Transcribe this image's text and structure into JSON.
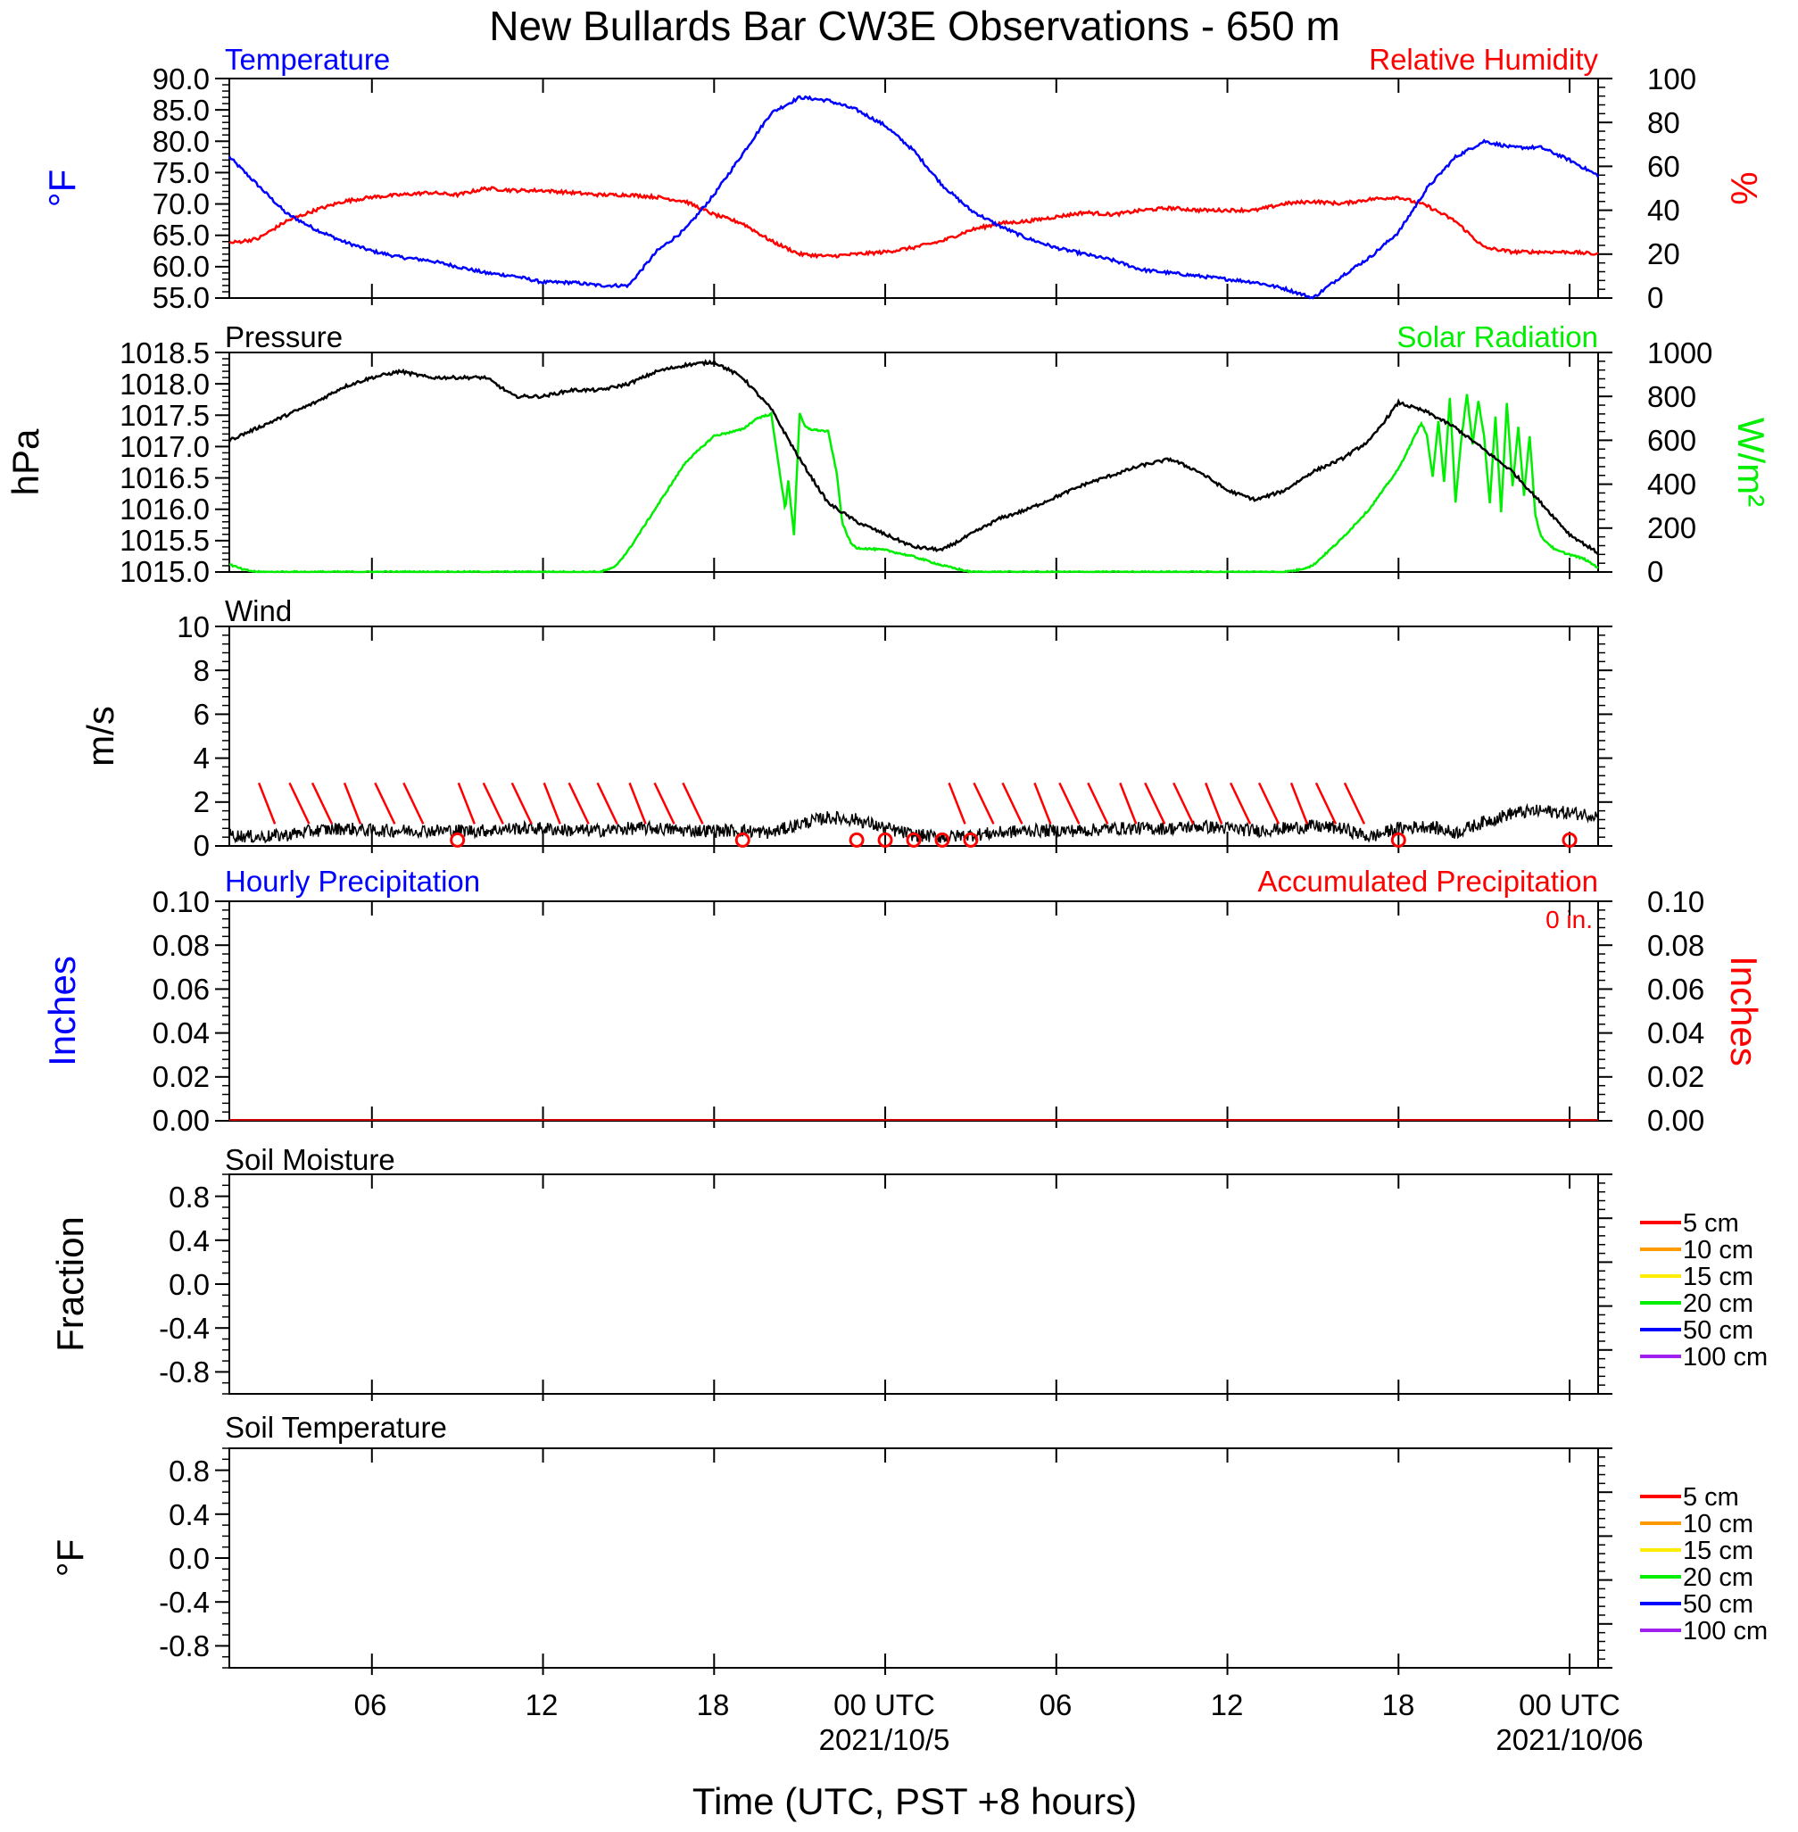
{
  "title": "New Bullards Bar CW3E Observations - 650 m",
  "x_axis": {
    "label": "Time (UTC, PST +8 hours)",
    "tick_labels": [
      "06",
      "12",
      "18",
      "00 UTC",
      "06",
      "12",
      "18",
      "00 UTC"
    ],
    "date_labels": [
      "2021/10/5",
      "2021/10/06"
    ]
  },
  "colors": {
    "temperature": "#0000ff",
    "humidity": "#ff0000",
    "pressure": "#000000",
    "solar": "#00ee00",
    "wind_speed": "#000000",
    "wind_barb": "#ff0000",
    "precip_hourly": "#0000ff",
    "precip_accum": "#ff0000",
    "soil_5": "#ff0000",
    "soil_10": "#ff9900",
    "soil_15": "#ffee00",
    "soil_20": "#00ee00",
    "soil_50": "#0000ff",
    "soil_100": "#a020f0"
  },
  "panels": {
    "temp_rh": {
      "title_left": "Temperature",
      "title_right": "Relative Humidity",
      "ylabel_left": "°F",
      "ylabel_right": "%",
      "left_ticks": [
        "90.0",
        "85.0",
        "80.0",
        "75.0",
        "70.0",
        "65.0",
        "60.0",
        "55.0"
      ],
      "right_ticks": [
        "100",
        "80",
        "60",
        "40",
        "20",
        "0"
      ]
    },
    "pressure_solar": {
      "title_left": "Pressure",
      "title_right": "Solar Radiation",
      "ylabel_left": "hPa",
      "ylabel_right": "W/m²",
      "left_ticks": [
        "1018.5",
        "1018.0",
        "1017.5",
        "1017.0",
        "1016.5",
        "1016.0",
        "1015.5",
        "1015.0"
      ],
      "right_ticks": [
        "1000",
        "800",
        "600",
        "400",
        "200",
        "0"
      ]
    },
    "wind": {
      "title_left": "Wind",
      "ylabel_left": "m/s",
      "left_ticks": [
        "10",
        "8",
        "6",
        "4",
        "2",
        "0"
      ]
    },
    "precip": {
      "title_left": "Hourly Precipitation",
      "title_right": "Accumulated Precipitation",
      "total_label": "0 in.",
      "ylabel_left": "Inches",
      "ylabel_right": "Inches",
      "left_ticks": [
        "0.10",
        "0.08",
        "0.06",
        "0.04",
        "0.02",
        "0.00"
      ],
      "right_ticks": [
        "0.10",
        "0.08",
        "0.06",
        "0.04",
        "0.02",
        "0.00"
      ]
    },
    "soil_moisture": {
      "title_left": "Soil Moisture",
      "ylabel_left": "Fraction",
      "left_ticks": [
        "0.8",
        "0.4",
        "0.0",
        "-0.4",
        "-0.8"
      ],
      "legend": [
        "5 cm",
        "10 cm",
        "15 cm",
        "20 cm",
        "50 cm",
        "100 cm"
      ]
    },
    "soil_temp": {
      "title_left": "Soil Temperature",
      "ylabel_left": "°F",
      "left_ticks": [
        "0.8",
        "0.4",
        "0.0",
        "-0.4",
        "-0.8"
      ],
      "legend": [
        "5 cm",
        "10 cm",
        "15 cm",
        "20 cm",
        "50 cm",
        "100 cm"
      ]
    }
  },
  "chart_data": [
    {
      "type": "line",
      "panel": "temp_rh",
      "x_unit": "hours since 2021-10-04 01:00 UTC",
      "xlim": [
        0,
        48
      ],
      "series": [
        {
          "name": "Temperature",
          "axis": "left",
          "ylim": [
            55,
            90
          ],
          "x": [
            0,
            1,
            2,
            3,
            4,
            5,
            6,
            7,
            8,
            9,
            10,
            11,
            12,
            13,
            14,
            15,
            16,
            17,
            18,
            19,
            20,
            21,
            22,
            23,
            24,
            25,
            26,
            27,
            28,
            29,
            30,
            31,
            32,
            33,
            34,
            35,
            36,
            37,
            38,
            39,
            40,
            41,
            42,
            43,
            44,
            45,
            46,
            47,
            48
          ],
          "values": [
            77.5,
            73.0,
            68.5,
            66.0,
            64.0,
            62.5,
            61.5,
            61.0,
            60.0,
            59.0,
            58.5,
            57.5,
            57.5,
            57.0,
            57.0,
            62.5,
            66.0,
            71.5,
            78.0,
            84.5,
            87.0,
            86.5,
            85.0,
            82.5,
            78.5,
            73.0,
            69.0,
            66.5,
            64.5,
            63.0,
            62.0,
            61.0,
            59.5,
            59.0,
            58.5,
            58.0,
            57.5,
            56.5,
            55.0,
            58.5,
            61.5,
            65.5,
            72.5,
            77.5,
            80.0,
            79.0,
            79.0,
            77.0,
            74.5
          ]
        },
        {
          "name": "Relative Humidity",
          "axis": "right",
          "ylim": [
            0,
            100
          ],
          "x": [
            0,
            1,
            2,
            3,
            4,
            5,
            6,
            7,
            8,
            9,
            10,
            11,
            12,
            13,
            14,
            15,
            16,
            17,
            18,
            19,
            20,
            21,
            22,
            23,
            24,
            25,
            26,
            27,
            28,
            29,
            30,
            31,
            32,
            33,
            34,
            35,
            36,
            37,
            38,
            39,
            40,
            41,
            42,
            43,
            44,
            45,
            46,
            47,
            48
          ],
          "values": [
            25,
            27,
            35,
            40,
            44,
            46,
            47,
            48,
            47,
            50,
            49,
            49,
            48,
            47,
            47,
            46,
            44,
            38,
            34,
            26,
            20,
            19,
            20,
            21,
            23,
            26,
            31,
            34,
            35,
            37,
            39,
            38,
            40,
            41,
            40,
            40,
            40,
            43,
            44,
            43,
            45,
            46,
            42,
            35,
            23,
            21,
            21,
            21,
            20
          ]
        }
      ]
    },
    {
      "type": "line",
      "panel": "pressure_solar",
      "x_unit": "hours since 2021-10-04 01:00 UTC",
      "xlim": [
        0,
        48
      ],
      "series": [
        {
          "name": "Pressure",
          "axis": "left",
          "ylim": [
            1015.0,
            1018.5
          ],
          "x": [
            0,
            1,
            2,
            3,
            4,
            5,
            6,
            7,
            8,
            9,
            10,
            11,
            12,
            13,
            14,
            15,
            16,
            17,
            18,
            19,
            20,
            21,
            22,
            23,
            24,
            25,
            26,
            27,
            28,
            29,
            30,
            31,
            32,
            33,
            34,
            35,
            36,
            37,
            38,
            39,
            40,
            41,
            42,
            43,
            44,
            45,
            46,
            47,
            48
          ],
          "values": [
            1017.1,
            1017.3,
            1017.5,
            1017.7,
            1017.95,
            1018.1,
            1018.2,
            1018.1,
            1018.1,
            1018.1,
            1017.8,
            1017.8,
            1017.9,
            1017.9,
            1018.0,
            1018.2,
            1018.3,
            1018.35,
            1018.1,
            1017.6,
            1016.8,
            1016.1,
            1015.8,
            1015.6,
            1015.4,
            1015.35,
            1015.6,
            1015.85,
            1016.0,
            1016.2,
            1016.4,
            1016.55,
            1016.7,
            1016.8,
            1016.6,
            1016.3,
            1016.15,
            1016.3,
            1016.6,
            1016.8,
            1017.1,
            1017.7,
            1017.55,
            1017.3,
            1016.95,
            1016.6,
            1016.1,
            1015.6,
            1015.3
          ]
        },
        {
          "name": "Solar Radiation",
          "axis": "right",
          "ylim": [
            0,
            1000
          ],
          "x": [
            0,
            0.5,
            1,
            2,
            3,
            4,
            5,
            6,
            7,
            8,
            9,
            10,
            11,
            12,
            13,
            13.5,
            14,
            15,
            16,
            17,
            18,
            18.5,
            19.0,
            19.5,
            19.6,
            19.8,
            20.0,
            20.2,
            20.4,
            21.0,
            21.3,
            21.5,
            21.8,
            22.0,
            23.0,
            24.0,
            25.0,
            26.0,
            30.0,
            35.0,
            37.0,
            37.5,
            38.0,
            39.0,
            40.0,
            41.0,
            41.5,
            41.8,
            42.0,
            42.2,
            42.4,
            42.6,
            42.8,
            43.0,
            43.2,
            43.4,
            43.6,
            43.8,
            44.0,
            44.2,
            44.4,
            44.6,
            44.8,
            45.0,
            45.2,
            45.4,
            45.6,
            45.8,
            46.0,
            46.5,
            47.0,
            47.5,
            48.0
          ],
          "values": [
            35,
            10,
            0,
            0,
            0,
            0,
            0,
            0,
            0,
            0,
            0,
            0,
            0,
            0,
            0,
            20,
            100,
            300,
            500,
            620,
            650,
            700,
            720,
            280,
            420,
            170,
            720,
            660,
            650,
            640,
            450,
            220,
            130,
            110,
            100,
            70,
            30,
            0,
            0,
            0,
            0,
            10,
            30,
            150,
            290,
            470,
            600,
            680,
            620,
            430,
            690,
            410,
            790,
            320,
            600,
            810,
            580,
            780,
            620,
            310,
            710,
            270,
            770,
            390,
            660,
            350,
            620,
            260,
            160,
            100,
            80,
            60,
            20
          ]
        }
      ]
    },
    {
      "type": "line",
      "panel": "wind",
      "x_unit": "hours since 2021-10-04 01:00 UTC",
      "xlim": [
        0,
        48
      ],
      "series": [
        {
          "name": "Wind",
          "axis": "left",
          "ylim": [
            0,
            10
          ],
          "x": [
            0,
            1,
            2,
            3,
            4,
            5,
            6,
            7,
            8,
            9,
            10,
            11,
            12,
            13,
            14,
            15,
            16,
            17,
            18,
            19,
            20,
            21,
            22,
            23,
            24,
            25,
            26,
            27,
            28,
            29,
            30,
            31,
            32,
            33,
            34,
            35,
            36,
            37,
            38,
            39,
            40,
            41,
            42,
            43,
            44,
            45,
            46,
            47,
            48
          ],
          "values": [
            0.5,
            0.4,
            0.5,
            0.7,
            0.8,
            0.7,
            0.7,
            0.7,
            0.7,
            0.7,
            0.8,
            0.8,
            0.7,
            0.7,
            0.8,
            0.8,
            0.7,
            0.7,
            0.7,
            0.6,
            1.0,
            1.3,
            1.2,
            0.8,
            0.5,
            0.4,
            0.5,
            0.6,
            0.7,
            0.7,
            0.7,
            0.8,
            0.8,
            0.8,
            0.9,
            0.8,
            0.7,
            0.8,
            0.9,
            0.8,
            0.4,
            0.8,
            0.9,
            0.6,
            1.1,
            1.5,
            1.6,
            1.5,
            1.4
          ]
        }
      ],
      "barbs": {
        "note": "wind direction barbs, drawn near the zero line",
        "x": [
          1.6,
          2.8,
          3.6,
          4.6,
          5.8,
          6.8,
          8.6,
          9.6,
          10.6,
          11.6,
          12.6,
          13.6,
          14.6,
          15.6,
          16.6,
          25.8,
          26.8,
          27.8,
          28.8,
          29.8,
          30.8,
          31.8,
          32.8,
          33.8,
          34.8,
          35.8,
          36.8,
          37.8,
          38.8,
          39.8
        ],
        "calm_x": [
          8.0,
          18.0,
          22.0,
          23.0,
          24.0,
          25.0,
          26.0,
          41.0,
          47.0
        ]
      }
    },
    {
      "type": "line",
      "panel": "precip",
      "xlim": [
        0,
        48
      ],
      "series": [
        {
          "name": "Hourly Precipitation",
          "axis": "left",
          "ylim": [
            0,
            0.1
          ],
          "values": [
            0,
            0
          ]
        },
        {
          "name": "Accumulated Precipitation",
          "axis": "right",
          "ylim": [
            0,
            0.1
          ],
          "values": [
            0,
            0
          ]
        }
      ]
    },
    {
      "type": "line",
      "panel": "soil_moisture",
      "ylim": [
        -1,
        1
      ],
      "series": []
    },
    {
      "type": "line",
      "panel": "soil_temp",
      "ylim": [
        -1,
        1
      ],
      "series": []
    }
  ]
}
